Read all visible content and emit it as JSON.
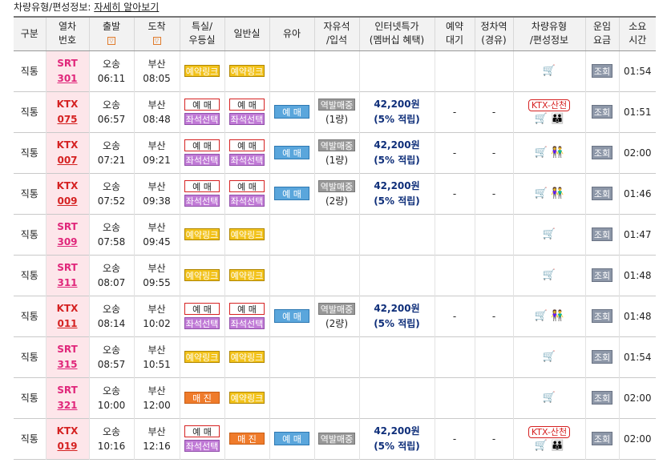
{
  "topbar": {
    "label": "차량유형/편성정보:",
    "link": "자세히 알아보기"
  },
  "headers": {
    "division": "구분",
    "train_no": [
      "열차",
      "번호"
    ],
    "depart": "출발",
    "arrive": "도착",
    "special": [
      "특실/",
      "우등실"
    ],
    "general": "일반실",
    "child": "유아",
    "free_seat": [
      "자유석",
      "/입석"
    ],
    "internet": [
      "인터넷특가",
      "(멤버십 혜택)"
    ],
    "reserve_wait": [
      "예약",
      "대기"
    ],
    "stop_station": [
      "정차역",
      "(경유)"
    ],
    "car_type": [
      "차량유형",
      "/편성정보"
    ],
    "fare": [
      "운임",
      "요금"
    ],
    "duration": [
      "소요",
      "시간"
    ]
  },
  "sort_icon": "▽",
  "labels": {
    "reserve": "예 매",
    "seat_select": "좌석선택",
    "reserve_link": "예약링크",
    "sold_out": "매 진",
    "free_ticket": "역발매중",
    "view": "조회",
    "ktx_sancheon": "KTX-산천",
    "dash": "-"
  },
  "rows": [
    {
      "division": "직통",
      "type": "SRT",
      "num": "301",
      "dep_st": "오송",
      "dep_t": "06:11",
      "arr_st": "부산",
      "arr_t": "08:05",
      "special": "link",
      "general": "link",
      "child": false,
      "free": null,
      "price": null,
      "points": null,
      "wait": "",
      "stop": "",
      "sancheon": false,
      "icons": "🛒",
      "duration": "01:54"
    },
    {
      "division": "직통",
      "type": "KTX",
      "num": "075",
      "dep_st": "오송",
      "dep_t": "06:57",
      "arr_st": "부산",
      "arr_t": "08:48",
      "special": "reserve",
      "general": "reserve",
      "child": true,
      "free": "(1량)",
      "price": "42,200원",
      "points": "(5% 적립)",
      "wait": "-",
      "stop": "-",
      "sancheon": true,
      "icons": "🛒 👪",
      "duration": "01:51"
    },
    {
      "division": "직통",
      "type": "KTX",
      "num": "007",
      "dep_st": "오송",
      "dep_t": "07:21",
      "arr_st": "부산",
      "arr_t": "09:21",
      "special": "reserve",
      "general": "reserve",
      "child": true,
      "free": "(1량)",
      "price": "42,200원",
      "points": "(5% 적립)",
      "wait": "-",
      "stop": "-",
      "sancheon": false,
      "icons": "🛒 👫",
      "duration": "02:00"
    },
    {
      "division": "직통",
      "type": "KTX",
      "num": "009",
      "dep_st": "오송",
      "dep_t": "07:52",
      "arr_st": "부산",
      "arr_t": "09:38",
      "special": "reserve",
      "general": "reserve",
      "child": true,
      "free": "(2량)",
      "price": "42,200원",
      "points": "(5% 적립)",
      "wait": "-",
      "stop": "-",
      "sancheon": false,
      "icons": "🛒 👫",
      "duration": "01:46"
    },
    {
      "division": "직통",
      "type": "SRT",
      "num": "309",
      "dep_st": "오송",
      "dep_t": "07:58",
      "arr_st": "부산",
      "arr_t": "09:45",
      "special": "link",
      "general": "link",
      "child": false,
      "free": null,
      "price": null,
      "points": null,
      "wait": "",
      "stop": "",
      "sancheon": false,
      "icons": "🛒",
      "duration": "01:47"
    },
    {
      "division": "직통",
      "type": "SRT",
      "num": "311",
      "dep_st": "오송",
      "dep_t": "08:07",
      "arr_st": "부산",
      "arr_t": "09:55",
      "special": "link",
      "general": "link",
      "child": false,
      "free": null,
      "price": null,
      "points": null,
      "wait": "",
      "stop": "",
      "sancheon": false,
      "icons": "🛒",
      "duration": "01:48"
    },
    {
      "division": "직통",
      "type": "KTX",
      "num": "011",
      "dep_st": "오송",
      "dep_t": "08:14",
      "arr_st": "부산",
      "arr_t": "10:02",
      "special": "reserve",
      "general": "reserve",
      "child": true,
      "free": "(2량)",
      "price": "42,200원",
      "points": "(5% 적립)",
      "wait": "-",
      "stop": "-",
      "sancheon": false,
      "icons": "🛒 👫",
      "duration": "01:48"
    },
    {
      "division": "직통",
      "type": "SRT",
      "num": "315",
      "dep_st": "오송",
      "dep_t": "08:57",
      "arr_st": "부산",
      "arr_t": "10:51",
      "special": "link",
      "general": "link",
      "child": false,
      "free": null,
      "price": null,
      "points": null,
      "wait": "",
      "stop": "",
      "sancheon": false,
      "icons": "🛒",
      "duration": "01:54"
    },
    {
      "division": "직통",
      "type": "SRT",
      "num": "321",
      "dep_st": "오송",
      "dep_t": "10:00",
      "arr_st": "부산",
      "arr_t": "12:00",
      "special": "soldout",
      "general": "link",
      "child": false,
      "free": null,
      "price": null,
      "points": null,
      "wait": "",
      "stop": "",
      "sancheon": false,
      "icons": "🛒",
      "duration": "02:00"
    },
    {
      "division": "직통",
      "type": "KTX",
      "num": "019",
      "dep_st": "오송",
      "dep_t": "10:16",
      "arr_st": "부산",
      "arr_t": "12:16",
      "special": "reserve",
      "general": "soldout",
      "child": true,
      "free": "",
      "price": "42,200원",
      "points": "(5% 적립)",
      "wait": "-",
      "stop": "-",
      "sancheon": true,
      "icons": "🛒 👪",
      "duration": "02:00"
    }
  ]
}
